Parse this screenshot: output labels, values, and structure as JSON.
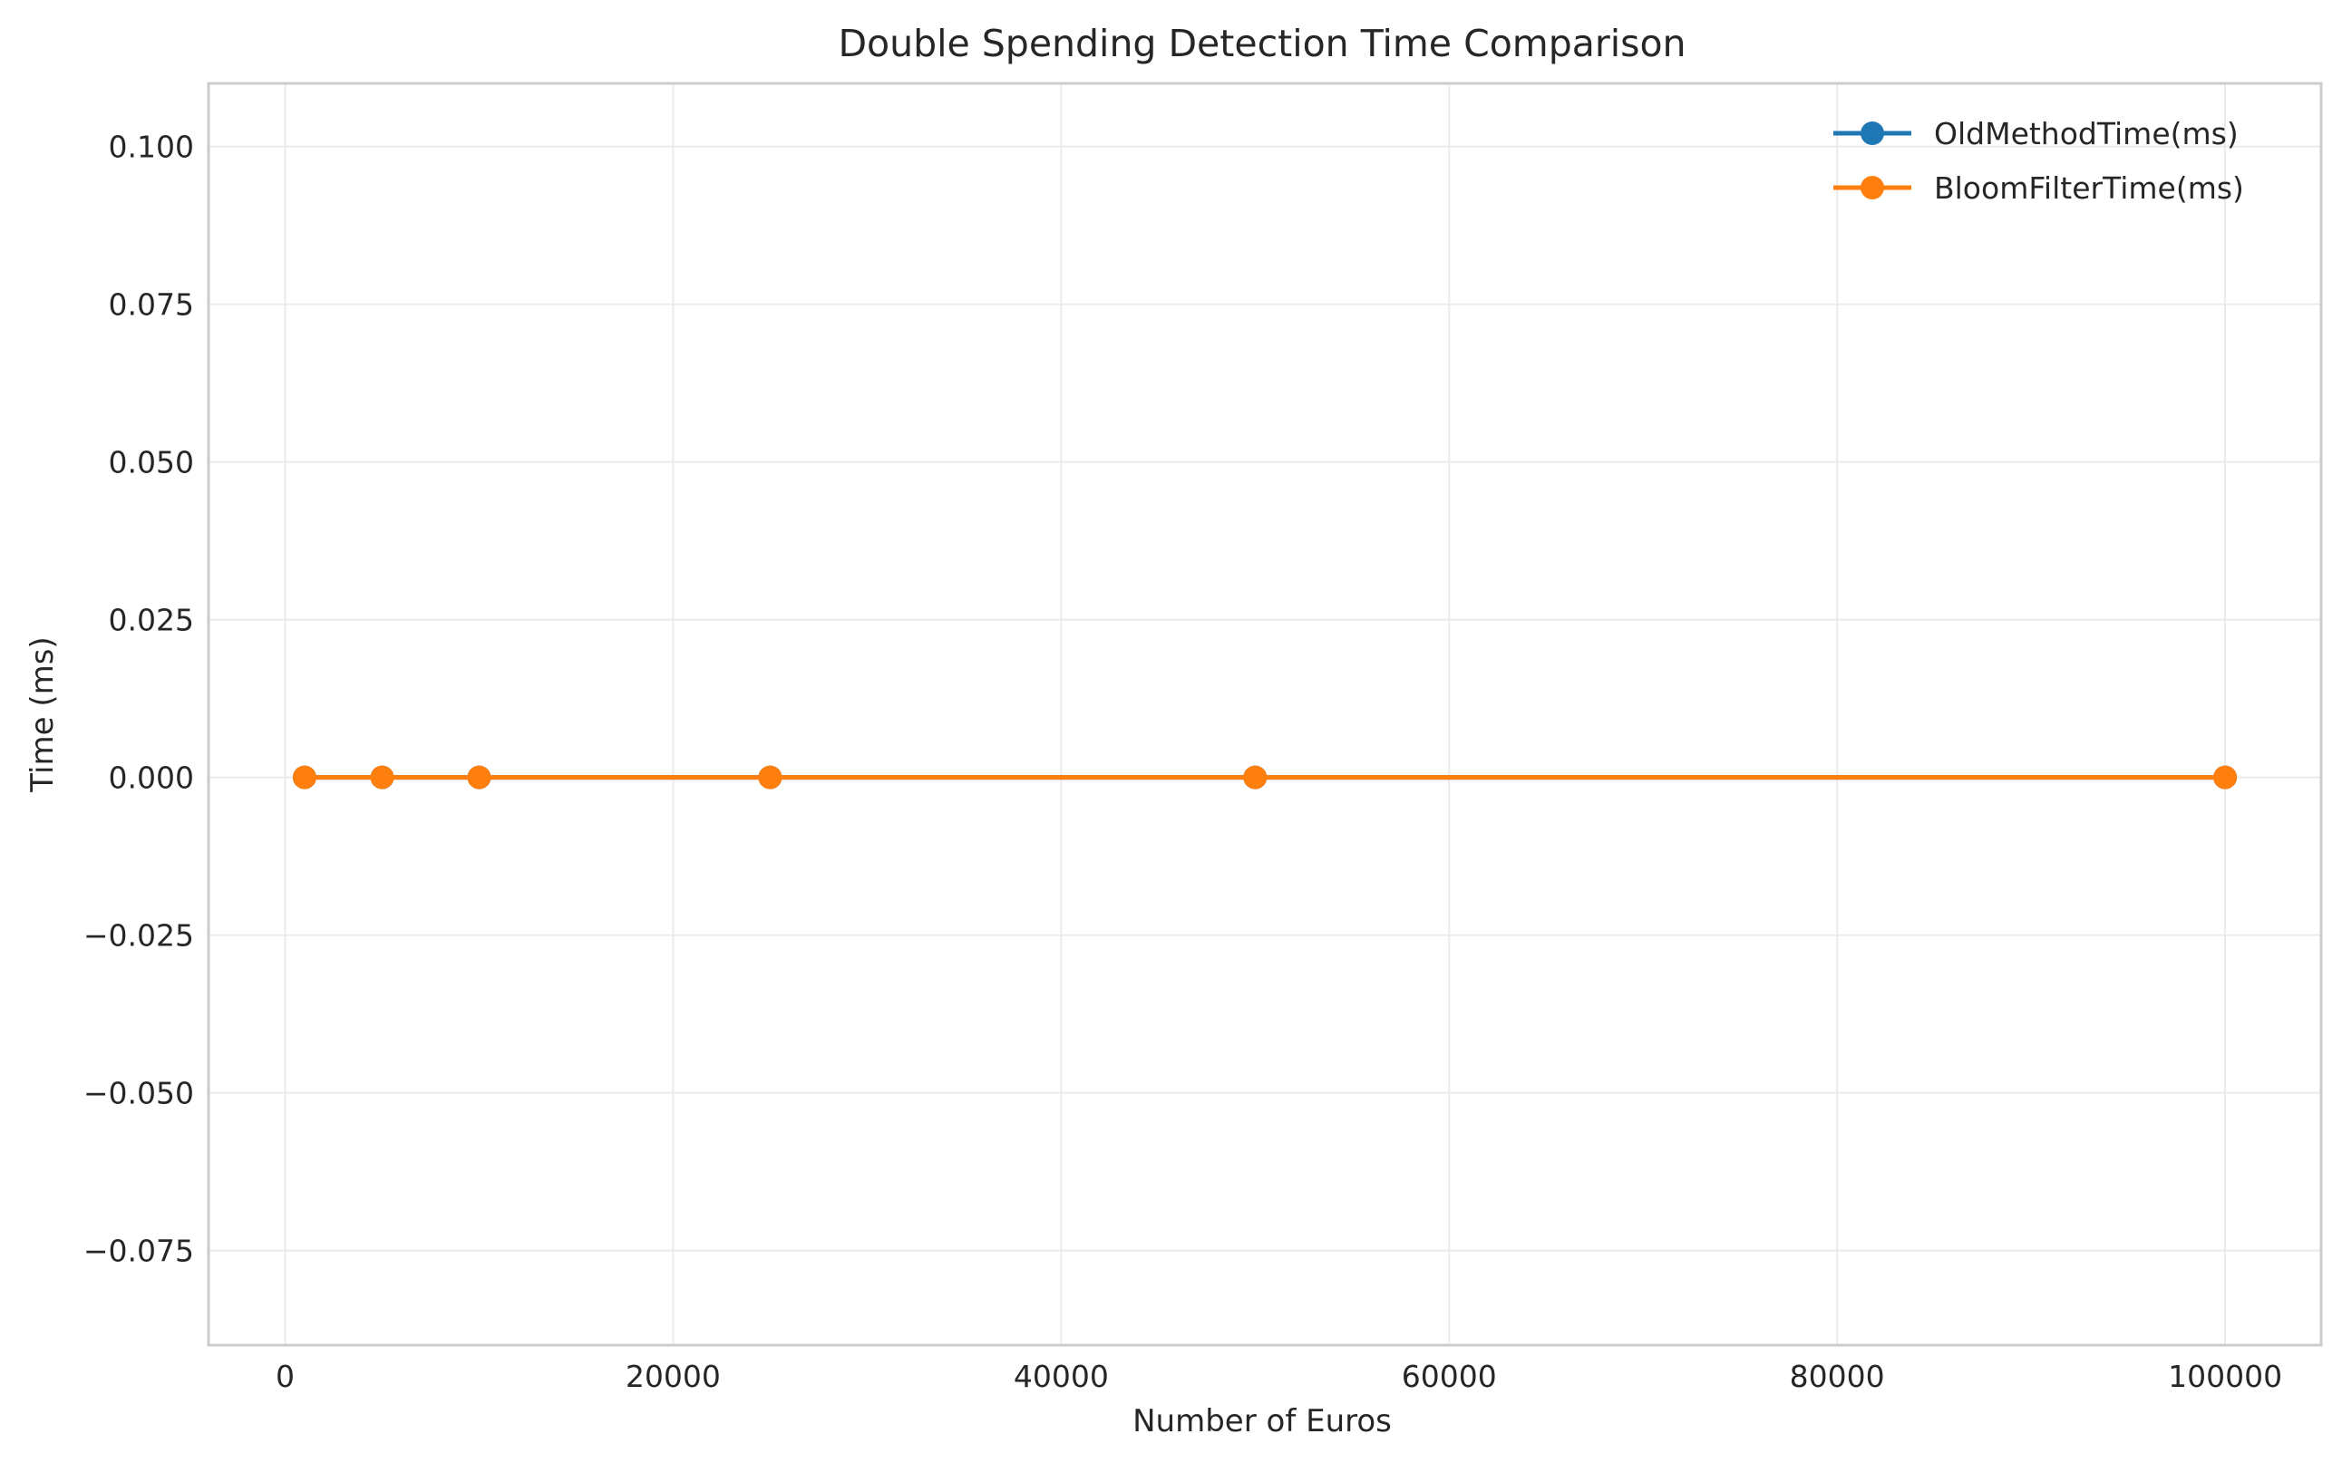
{
  "chart_data": {
    "type": "line",
    "title": "Double Spending Detection Time Comparison",
    "xlabel": "Number of Euros",
    "ylabel": "Time (ms)",
    "x": [
      1000,
      5000,
      10000,
      25000,
      50000,
      100000
    ],
    "series": [
      {
        "name": "OldMethodTime(ms)",
        "values": [
          0,
          0,
          0,
          0,
          0,
          0
        ],
        "color": "#1f77b4"
      },
      {
        "name": "BloomFilterTime(ms)",
        "values": [
          0,
          0,
          0,
          0,
          0,
          0
        ],
        "color": "#ff7f0e"
      }
    ],
    "xlim": [
      -3950,
      104950
    ],
    "ylim": [
      -0.09,
      0.11
    ],
    "xticks": [
      0,
      20000,
      40000,
      60000,
      80000,
      100000
    ],
    "xtick_labels": [
      "0",
      "20000",
      "40000",
      "60000",
      "80000",
      "100000"
    ],
    "yticks": [
      -0.075,
      -0.05,
      -0.025,
      0,
      0.025,
      0.05,
      0.075,
      0.1
    ],
    "ytick_labels": [
      "−0.075",
      "−0.050",
      "−0.025",
      "0.000",
      "0.025",
      "0.050",
      "0.075",
      "0.100"
    ],
    "grid": true,
    "legend_position": "top-right"
  }
}
